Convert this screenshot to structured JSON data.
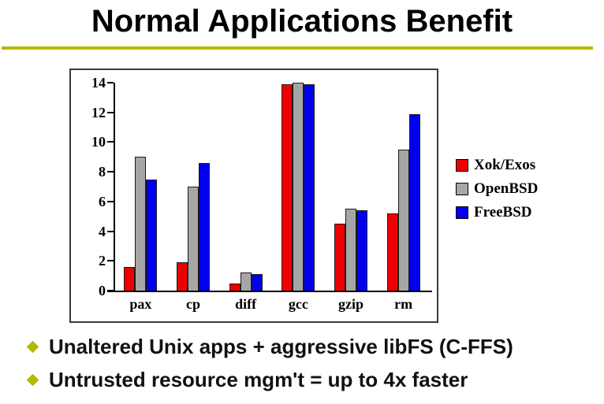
{
  "slide": {
    "title": "Normal Applications Benefit",
    "accent_color": "#b3b800",
    "bullets": [
      "Unaltered Unix apps + aggressive libFS (C-FFS)",
      "Untrusted resource mgm't = up to 4x faster"
    ]
  },
  "chart_data": {
    "type": "bar",
    "title": "",
    "xlabel": "",
    "ylabel": "",
    "categories": [
      "pax",
      "cp",
      "diff",
      "gcc",
      "gzip",
      "rm"
    ],
    "series": [
      {
        "name": "Xok/Exos",
        "color": "#ee0000",
        "values": [
          1.6,
          1.9,
          0.5,
          13.9,
          4.5,
          5.2
        ]
      },
      {
        "name": "OpenBSD",
        "color": "#a6a6a6",
        "values": [
          9.0,
          7.0,
          1.2,
          14.0,
          5.5,
          9.5
        ]
      },
      {
        "name": "FreeBSD",
        "color": "#0000ee",
        "values": [
          7.5,
          8.6,
          1.1,
          13.9,
          5.4,
          11.9
        ]
      }
    ],
    "ylim": [
      0,
      14
    ],
    "yticks": [
      0,
      2,
      4,
      6,
      8,
      10,
      12,
      14
    ],
    "grid": false,
    "legend_position": "right"
  }
}
